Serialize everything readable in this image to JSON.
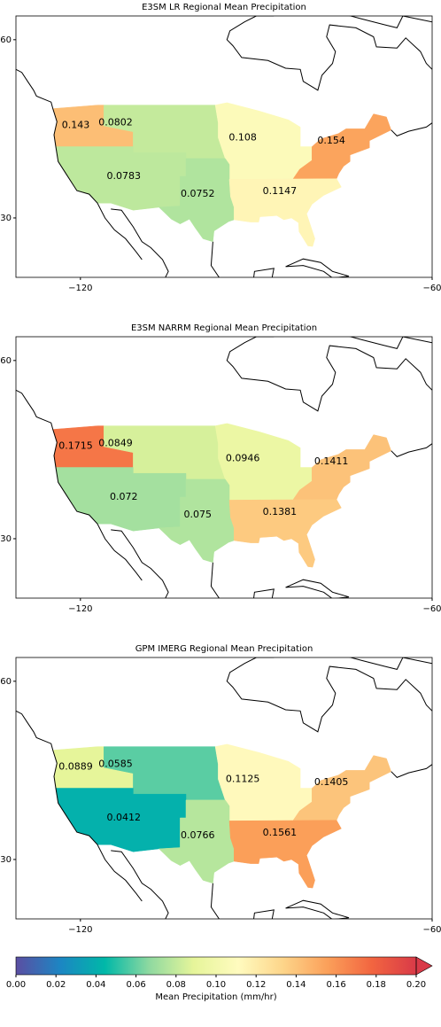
{
  "panels": [
    {
      "title": "E3SM LR Regional Mean Precipitation",
      "values": [
        0.143,
        0.0802,
        0.108,
        0.154,
        0.0783,
        0.0752,
        0.1147
      ]
    },
    {
      "title": "E3SM NARRM Regional Mean Precipitation",
      "values": [
        0.1715,
        0.0849,
        0.0946,
        0.1411,
        0.072,
        0.075,
        0.1381
      ]
    },
    {
      "title": "GPM IMERG Regional Mean Precipitation",
      "values": [
        0.0889,
        0.0585,
        0.1125,
        0.1405,
        0.0412,
        0.0766,
        0.1561
      ]
    }
  ],
  "map": {
    "xlim": [
      -131,
      -60
    ],
    "ylim": [
      20,
      64
    ],
    "xticks": [
      {
        "value": -120,
        "label": "−120"
      },
      {
        "value": -60,
        "label": "−60"
      }
    ],
    "yticks": [
      30,
      60
    ]
  },
  "colorbar": {
    "label": "Mean Precipitation (mm/hr)",
    "lim": [
      0,
      0.2
    ],
    "extend": "max",
    "colormap": [
      "#5b4ea2",
      "#1c86c3",
      "#00b8a8",
      "#8fd9a0",
      "#e6f59a",
      "#fffbbf",
      "#fdd58a",
      "#fba05a",
      "#f26540",
      "#d93a48"
    ],
    "ticks": [
      {
        "value": 0,
        "label": "0.00"
      },
      {
        "value": 0.02,
        "label": "0.02"
      },
      {
        "value": 0.04,
        "label": "0.04"
      },
      {
        "value": 0.06,
        "label": "0.06"
      },
      {
        "value": 0.08,
        "label": "0.08"
      },
      {
        "value": 0.1,
        "label": "0.10"
      },
      {
        "value": 0.12,
        "label": "0.12"
      },
      {
        "value": 0.14,
        "label": "0.14"
      },
      {
        "value": 0.16,
        "label": "0.16"
      },
      {
        "value": 0.18,
        "label": "0.18"
      },
      {
        "value": 0.2,
        "label": "0.20"
      }
    ]
  }
}
